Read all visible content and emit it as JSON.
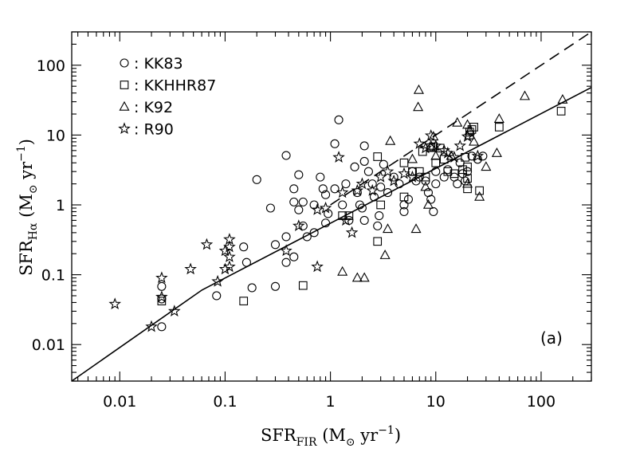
{
  "chart_data": {
    "type": "scatter",
    "x_scale": "log",
    "y_scale": "log",
    "xlim": [
      0.0035,
      300
    ],
    "ylim": [
      0.003,
      300
    ],
    "x_tick_labels": [
      "0.01",
      "0.1",
      "1",
      "10",
      "100"
    ],
    "y_tick_labels": [
      "0.01",
      "0.1",
      "1",
      "10",
      "100"
    ],
    "xlabel": {
      "main": "SFR",
      "sub": "FIR",
      "unit_open": " (M",
      "sun": "⊙",
      "unit_rest": " yr",
      "exp": "−1",
      "close": ")"
    },
    "ylabel": {
      "main": "SFR",
      "sub": "Hα",
      "unit_open": " (M",
      "sun": "⊙",
      "unit_rest": " yr",
      "exp": "−1",
      "close": ")"
    },
    "panel_label": "(a)",
    "legend": [
      {
        "marker": "circle",
        "label": ": KK83"
      },
      {
        "marker": "square",
        "label": ": KKHHR87"
      },
      {
        "marker": "triangle",
        "label": ": K92"
      },
      {
        "marker": "star",
        "label": ": R90"
      }
    ],
    "lines": [
      {
        "style": "solid",
        "points": [
          [
            0.0035,
            0.003
          ],
          [
            0.06,
            0.06
          ],
          [
            300,
            48
          ]
        ]
      },
      {
        "style": "dashed",
        "points": [
          [
            1,
            1
          ],
          [
            300,
            300
          ]
        ]
      }
    ],
    "series": [
      {
        "name": "KK83",
        "marker": "circle",
        "points": [
          [
            0.025,
            0.068
          ],
          [
            0.025,
            0.018
          ],
          [
            0.025,
            0.045
          ],
          [
            0.083,
            0.05
          ],
          [
            0.15,
            0.25
          ],
          [
            0.16,
            0.15
          ],
          [
            0.18,
            0.065
          ],
          [
            0.2,
            2.3
          ],
          [
            0.27,
            0.9
          ],
          [
            0.3,
            0.27
          ],
          [
            0.3,
            0.068
          ],
          [
            0.38,
            5.1
          ],
          [
            0.38,
            0.35
          ],
          [
            0.38,
            0.15
          ],
          [
            0.45,
            1.7
          ],
          [
            0.45,
            1.1
          ],
          [
            0.45,
            0.18
          ],
          [
            0.5,
            2.7
          ],
          [
            0.5,
            0.85
          ],
          [
            0.55,
            1.1
          ],
          [
            0.55,
            0.5
          ],
          [
            0.6,
            0.35
          ],
          [
            0.7,
            0.4
          ],
          [
            0.7,
            1.0
          ],
          [
            0.8,
            2.5
          ],
          [
            0.85,
            1.7
          ],
          [
            0.9,
            1.4
          ],
          [
            0.9,
            0.55
          ],
          [
            0.95,
            0.75
          ],
          [
            1.1,
            7.5
          ],
          [
            1.1,
            1.7
          ],
          [
            1.2,
            16.5
          ],
          [
            1.3,
            1.0
          ],
          [
            1.4,
            2.0
          ],
          [
            1.5,
            0.6
          ],
          [
            1.7,
            3.5
          ],
          [
            1.8,
            1.5
          ],
          [
            1.9,
            1.0
          ],
          [
            2.0,
            0.9
          ],
          [
            2.1,
            7.0
          ],
          [
            2.1,
            4.2
          ],
          [
            2.1,
            0.6
          ],
          [
            2.3,
            3.0
          ],
          [
            2.5,
            2.0
          ],
          [
            2.6,
            1.3
          ],
          [
            2.8,
            0.5
          ],
          [
            2.9,
            0.7
          ],
          [
            3.0,
            1.8
          ],
          [
            3.2,
            3.8
          ],
          [
            3.5,
            1.5
          ],
          [
            4.0,
            2.5
          ],
          [
            4.5,
            2.0
          ],
          [
            5.0,
            1.0
          ],
          [
            5.0,
            0.8
          ],
          [
            5.5,
            1.2
          ],
          [
            6.0,
            3.0
          ],
          [
            6.5,
            2.2
          ],
          [
            7.0,
            2.5
          ],
          [
            8.0,
            2.2
          ],
          [
            8.5,
            1.5
          ],
          [
            9.0,
            1.2
          ],
          [
            9.5,
            0.8
          ],
          [
            10.0,
            3.0
          ],
          [
            10.0,
            2.0
          ],
          [
            12.0,
            2.5
          ],
          [
            13.0,
            3.2
          ],
          [
            15.0,
            2.5
          ],
          [
            16.0,
            2.0
          ],
          [
            17.0,
            4.0
          ],
          [
            18.0,
            2.8
          ],
          [
            19.0,
            2.2
          ],
          [
            20.0,
            3.0
          ],
          [
            22.0,
            5.0
          ],
          [
            25.0,
            4.5
          ],
          [
            28.0,
            5.0
          ]
        ]
      },
      {
        "name": "KKHHR87",
        "marker": "square",
        "points": [
          [
            0.025,
            0.042
          ],
          [
            0.15,
            0.042
          ],
          [
            0.55,
            0.07
          ],
          [
            1.3,
            0.7
          ],
          [
            1.5,
            0.7
          ],
          [
            2.8,
            0.3
          ],
          [
            2.8,
            4.9
          ],
          [
            3.0,
            1.0
          ],
          [
            5.0,
            1.3
          ],
          [
            5.0,
            4.0
          ],
          [
            6.0,
            3.0
          ],
          [
            7.0,
            3.0
          ],
          [
            7.5,
            5.8
          ],
          [
            8.0,
            2.5
          ],
          [
            9.0,
            6.6
          ],
          [
            9.5,
            6.8
          ],
          [
            10.0,
            4.0
          ],
          [
            11.0,
            6.5
          ],
          [
            12.0,
            4.5
          ],
          [
            13.0,
            3.0
          ],
          [
            15.0,
            2.8
          ],
          [
            18.0,
            3.2
          ],
          [
            19.0,
            4.8
          ],
          [
            20.0,
            1.7
          ],
          [
            20.0,
            2.4
          ],
          [
            20.0,
            3.5
          ],
          [
            21.0,
            10.0
          ],
          [
            21.0,
            11.0
          ],
          [
            22.0,
            12.0
          ],
          [
            23.0,
            13.0
          ],
          [
            26.0,
            1.6
          ],
          [
            40.0,
            13.0
          ],
          [
            155.0,
            22.0
          ]
        ]
      },
      {
        "name": "K92",
        "marker": "triangle",
        "points": [
          [
            1.3,
            0.11
          ],
          [
            1.8,
            0.09
          ],
          [
            2.1,
            0.09
          ],
          [
            3.3,
            0.19
          ],
          [
            3.5,
            0.45
          ],
          [
            3.7,
            8.2
          ],
          [
            6.0,
            4.5
          ],
          [
            6.5,
            0.45
          ],
          [
            6.8,
            25.0
          ],
          [
            6.9,
            44.0
          ],
          [
            8.0,
            1.8
          ],
          [
            8.5,
            1.0
          ],
          [
            9.0,
            7.0
          ],
          [
            9.5,
            9.5
          ],
          [
            10.0,
            5.0
          ],
          [
            14.0,
            5.0
          ],
          [
            16.0,
            15.0
          ],
          [
            20.0,
            14.0
          ],
          [
            20.0,
            2.0
          ],
          [
            21.0,
            11.5
          ],
          [
            23.0,
            8.0
          ],
          [
            26.0,
            1.3
          ],
          [
            30.0,
            3.5
          ],
          [
            38.0,
            5.5
          ],
          [
            40.0,
            17.0
          ],
          [
            70.0,
            36.0
          ],
          [
            160.0,
            32.0
          ]
        ]
      },
      {
        "name": "R90",
        "marker": "star",
        "points": [
          [
            0.009,
            0.038
          ],
          [
            0.02,
            0.018
          ],
          [
            0.025,
            0.09
          ],
          [
            0.025,
            0.048
          ],
          [
            0.033,
            0.03
          ],
          [
            0.047,
            0.12
          ],
          [
            0.067,
            0.27
          ],
          [
            0.085,
            0.08
          ],
          [
            0.1,
            0.22
          ],
          [
            0.1,
            0.12
          ],
          [
            0.11,
            0.32
          ],
          [
            0.11,
            0.25
          ],
          [
            0.11,
            0.18
          ],
          [
            0.11,
            0.13
          ],
          [
            0.38,
            0.22
          ],
          [
            0.5,
            0.5
          ],
          [
            0.75,
            0.13
          ],
          [
            0.75,
            0.85
          ],
          [
            0.9,
            0.9
          ],
          [
            1.2,
            4.8
          ],
          [
            1.3,
            1.5
          ],
          [
            1.4,
            0.6
          ],
          [
            1.6,
            0.4
          ],
          [
            1.8,
            1.6
          ],
          [
            2.0,
            2.0
          ],
          [
            2.5,
            1.6
          ],
          [
            3.0,
            2.5
          ],
          [
            3.5,
            3.0
          ],
          [
            4.0,
            2.2
          ],
          [
            5.0,
            2.8
          ],
          [
            6.0,
            2.5
          ],
          [
            7.0,
            7.5
          ],
          [
            8.0,
            6.5
          ],
          [
            9.0,
            9.8
          ],
          [
            10.0,
            7.0
          ],
          [
            12.0,
            6.0
          ],
          [
            13.0,
            5.5
          ],
          [
            15.0,
            4.8
          ],
          [
            17.0,
            7.0
          ],
          [
            20.0,
            9.5
          ],
          [
            25.0,
            5.0
          ]
        ]
      }
    ]
  }
}
